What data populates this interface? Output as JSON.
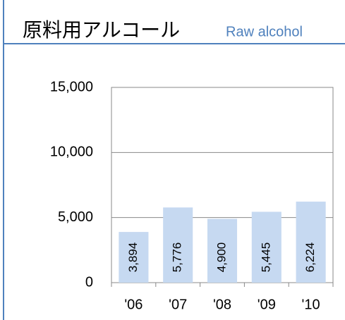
{
  "chart_data": {
    "type": "bar",
    "title": "原料用アルコール",
    "subtitle": "Raw alcohol",
    "categories": [
      "'06",
      "'07",
      "'08",
      "'09",
      "'10"
    ],
    "values": [
      3894,
      5776,
      4900,
      5445,
      6224
    ],
    "value_labels": [
      "3,894",
      "5,776",
      "4,900",
      "5,445",
      "6,224"
    ],
    "color": "#c6d9f1",
    "ylim": [
      0,
      15000
    ],
    "yticks": [
      0,
      {
        "value": 5000,
        "label": "5,000"
      },
      {
        "value": 10000,
        "label": "10,000"
      },
      {
        "value": 15000,
        "label": "15,000"
      }
    ],
    "grid": true
  }
}
